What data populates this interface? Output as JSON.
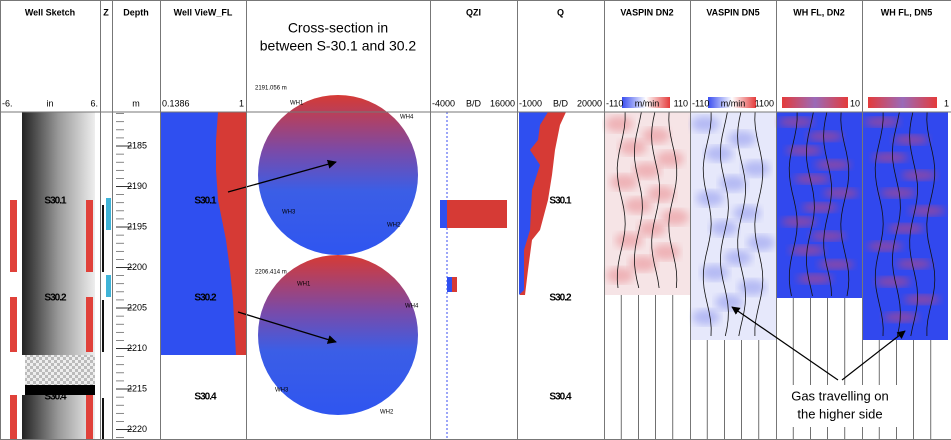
{
  "tracks": [
    {
      "title": "Well Sketch",
      "scale": [
        "-6.",
        "in",
        "6."
      ]
    },
    {
      "title": "Z",
      "scale": []
    },
    {
      "title": "Depth",
      "scale": [
        "m"
      ]
    },
    {
      "title": "Well VieW_FL",
      "scale": [
        "0.1386",
        "1"
      ]
    },
    {
      "title": "",
      "scale": []
    },
    {
      "title": "QZI",
      "scale": [
        "-4000",
        "B/D",
        "16000"
      ]
    },
    {
      "title": "Q",
      "scale": [
        "-1000",
        "B/D",
        "20000"
      ]
    },
    {
      "title": "VASPIN DN2",
      "scale": [
        "-110",
        "m/min",
        "110"
      ]
    },
    {
      "title": "VASPIN DN5",
      "scale": [
        "-110",
        "m/min",
        "1100"
      ]
    },
    {
      "title": "WH FL, DN2",
      "scale": [
        "10"
      ]
    },
    {
      "title": "WH FL, DN5",
      "scale": [
        "1"
      ]
    }
  ],
  "cross_section": {
    "title_lines": [
      "Cross-section in",
      "between S-30.1 and 30.2"
    ],
    "circles": [
      {
        "depth_label": "2191.056 m",
        "labels": [
          "WH1",
          "WH4",
          "WH3",
          "WH2"
        ]
      },
      {
        "depth_label": "2206.414 m",
        "labels": [
          "WH1",
          "WH4",
          "WH3",
          "WH2"
        ]
      }
    ]
  },
  "depth_ticks": [
    2185,
    2190,
    2195,
    2200,
    2205,
    2210,
    2215,
    2220
  ],
  "zones": [
    "S30.1",
    "S30.2",
    "S30.4"
  ],
  "annotation_lines": [
    "Gas travelling on",
    "the higher side"
  ]
}
